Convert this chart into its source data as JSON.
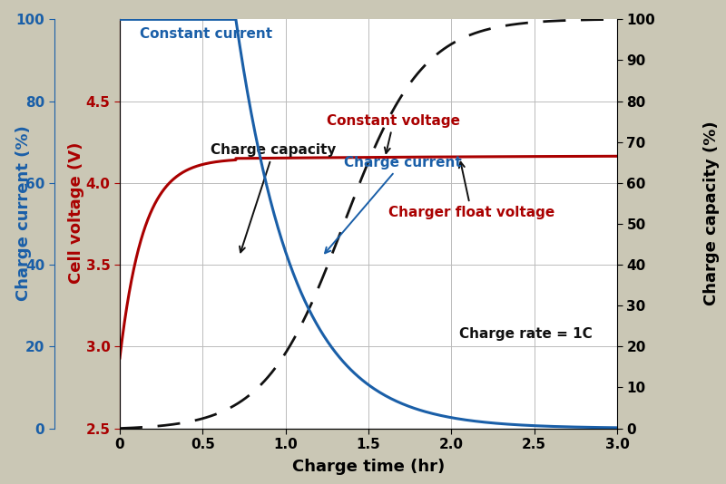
{
  "background_color": "#cac7b5",
  "plot_bg_color": "#ffffff",
  "xlabel": "Charge time (hr)",
  "ylabel_left_voltage": "Cell voltage (V)",
  "ylabel_left_current": "Charge current (%)",
  "ylabel_right": "Charge capacity (%)",
  "xlim": [
    0,
    3.0
  ],
  "xticks": [
    0,
    0.5,
    1.0,
    1.5,
    2.0,
    2.5,
    3.0
  ],
  "yticks_voltage": [
    2.5,
    3.0,
    3.5,
    4.0,
    4.5
  ],
  "yticks_current_pct": [
    0,
    20,
    40,
    60,
    80,
    100
  ],
  "yticks_capacity": [
    0,
    10,
    20,
    30,
    40,
    50,
    60,
    70,
    80,
    90,
    100
  ],
  "voltage_color": "#aa0000",
  "current_color": "#1a5fa8",
  "capacity_color": "#111111",
  "label_fontsize": 13,
  "tick_fontsize": 11,
  "annot_fontsize": 11
}
